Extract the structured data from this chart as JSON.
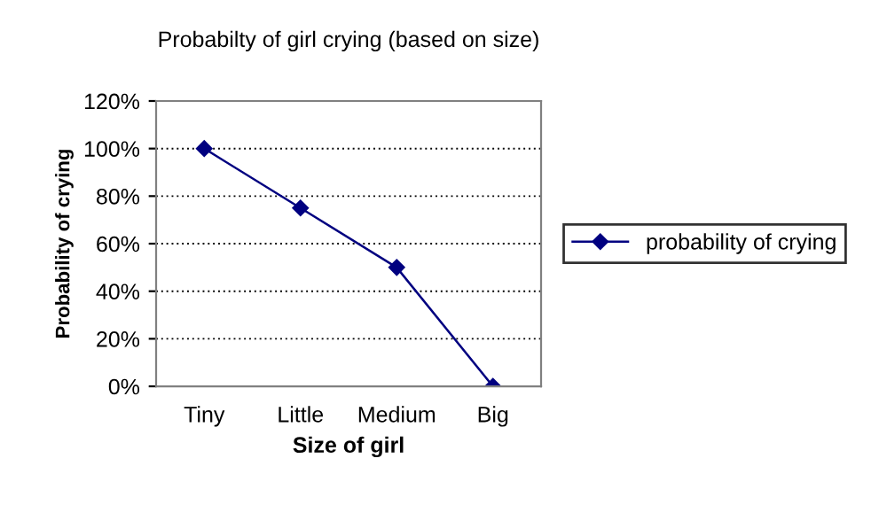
{
  "chart_data": {
    "type": "line",
    "title": "Probabilty of girl crying (based on size)",
    "xlabel": "Size of girl",
    "ylabel": "Probability of crying",
    "categories": [
      "Tiny",
      "Little",
      "Medium",
      "Big"
    ],
    "series": [
      {
        "name": "probability of crying",
        "color": "#000080",
        "values": [
          100,
          75,
          50,
          0
        ]
      }
    ],
    "ylim": [
      0,
      120
    ],
    "yticks": [
      {
        "value": 0,
        "label": "0%"
      },
      {
        "value": 20,
        "label": "20%"
      },
      {
        "value": 40,
        "label": "40%"
      },
      {
        "value": 60,
        "label": "60%"
      },
      {
        "value": 80,
        "label": "80%"
      },
      {
        "value": 100,
        "label": "100%"
      },
      {
        "value": 120,
        "label": "120%"
      }
    ],
    "grid": "y",
    "legend": "right",
    "marker": "diamond",
    "line_style": "solid"
  }
}
